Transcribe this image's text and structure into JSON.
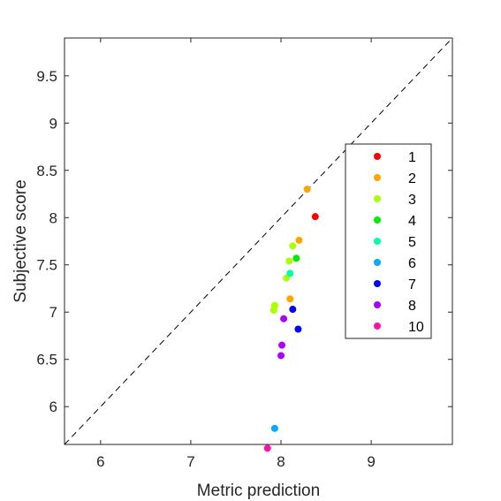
{
  "chart_data": {
    "type": "scatter",
    "xlabel": "Metric prediction",
    "ylabel": "Subjective score",
    "xlim": [
      5.6,
      9.9
    ],
    "ylim": [
      5.6,
      9.9
    ],
    "x_ticks": [
      6,
      7,
      8,
      9
    ],
    "x_tick_labels": [
      "6",
      "7",
      "8",
      "9"
    ],
    "y_ticks": [
      6,
      6.5,
      7,
      7.5,
      8,
      8.5,
      9,
      9.5
    ],
    "y_tick_labels": [
      "6",
      "6.5",
      "7",
      "7.5",
      "8",
      "8.5",
      "9",
      "9.5"
    ],
    "grid": false,
    "reference_line": "y = x (dashed)",
    "legend_position": "right",
    "series": [
      {
        "name": "1",
        "color": "#ff0000",
        "points": [
          [
            8.38,
            8.01
          ]
        ]
      },
      {
        "name": "2",
        "color": "#ffa500",
        "points": [
          [
            8.29,
            8.3
          ],
          [
            8.2,
            7.76
          ],
          [
            8.1,
            7.14
          ]
        ]
      },
      {
        "name": "3",
        "color": "#aaff00",
        "points": [
          [
            8.13,
            7.7
          ],
          [
            8.09,
            7.54
          ],
          [
            8.06,
            7.36
          ],
          [
            7.93,
            7.07
          ],
          [
            7.92,
            7.02
          ]
        ]
      },
      {
        "name": "4",
        "color": "#00ee00",
        "points": [
          [
            8.17,
            7.57
          ]
        ]
      },
      {
        "name": "5",
        "color": "#00ffaa",
        "points": [
          [
            8.1,
            7.41
          ]
        ]
      },
      {
        "name": "6",
        "color": "#00aaff",
        "points": [
          [
            7.93,
            5.77
          ]
        ]
      },
      {
        "name": "7",
        "color": "#0000ff",
        "points": [
          [
            8.13,
            7.03
          ],
          [
            8.19,
            6.82
          ]
        ]
      },
      {
        "name": "8",
        "color": "#aa00ff",
        "points": [
          [
            8.03,
            6.93
          ],
          [
            8.01,
            6.65
          ],
          [
            8.0,
            6.54
          ]
        ]
      },
      {
        "name": "10",
        "color": "#ff11aa",
        "points": [
          [
            7.85,
            5.56
          ]
        ]
      }
    ]
  }
}
